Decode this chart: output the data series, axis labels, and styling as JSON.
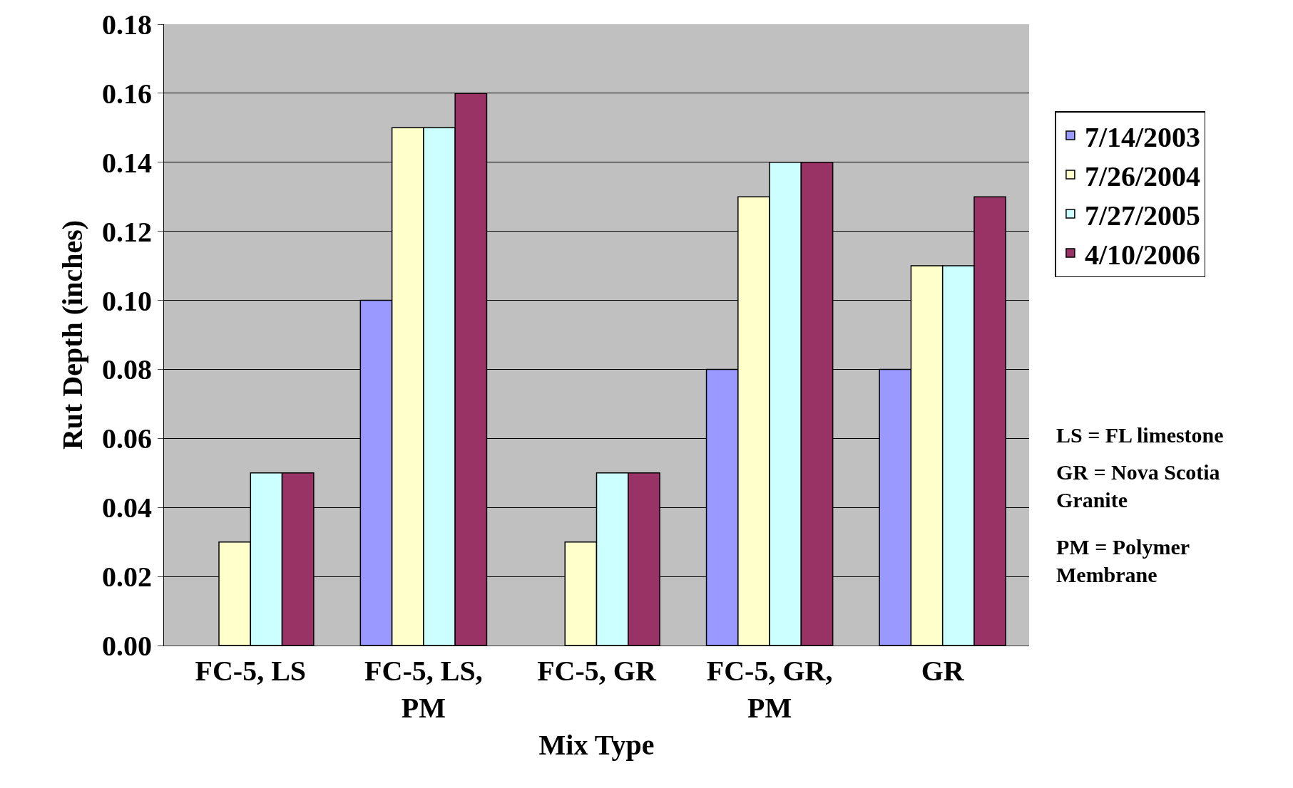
{
  "chart_data": {
    "type": "bar",
    "xlabel": "Mix Type",
    "ylabel": "Rut Depth (inches)",
    "categories": [
      "FC-5, LS",
      "FC-5, LS, PM",
      "FC-5, GR",
      "FC-5, GR, PM",
      "GR"
    ],
    "series": [
      {
        "name": "7/14/2003",
        "color": "#9999ff",
        "values": [
          null,
          0.1,
          null,
          0.08,
          0.08
        ]
      },
      {
        "name": "7/26/2004",
        "color": "#ffffcc",
        "values": [
          0.03,
          0.15,
          0.03,
          0.13,
          0.11
        ]
      },
      {
        "name": "7/27/2005",
        "color": "#ccffff",
        "values": [
          0.05,
          0.15,
          0.05,
          0.14,
          0.11
        ]
      },
      {
        "name": "4/10/2006",
        "color": "#993366",
        "values": [
          0.05,
          0.16,
          0.05,
          0.14,
          0.13
        ]
      }
    ],
    "ylim": [
      0,
      0.18
    ],
    "yticks": [
      {
        "value": 0,
        "label": "0.00"
      },
      {
        "value": 0.02,
        "label": "0.02"
      },
      {
        "value": 0.04,
        "label": "0.04"
      },
      {
        "value": 0.06,
        "label": "0.06"
      },
      {
        "value": 0.08,
        "label": "0.08"
      },
      {
        "value": 0.1,
        "label": "0.10"
      },
      {
        "value": 0.12,
        "label": "0.12"
      },
      {
        "value": 0.14,
        "label": "0.14"
      },
      {
        "value": 0.16,
        "label": "0.16"
      },
      {
        "value": 0.18,
        "label": "0.18"
      }
    ],
    "grid": "y",
    "legend": "right",
    "annotations": [
      "LS = FL limestone",
      "GR = Nova Scotia Granite",
      "PM = Polymer Membrane"
    ]
  }
}
